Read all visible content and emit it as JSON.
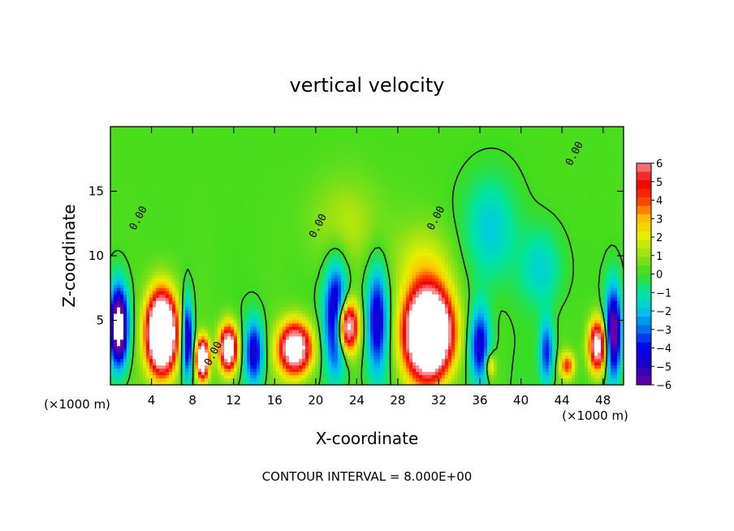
{
  "chart_data": {
    "type": "heatmap",
    "title": "vertical velocity",
    "xlabel": "X-coordinate",
    "ylabel": "Z-coordinate",
    "x_unit_left": "(×1000 m)",
    "x_unit_right": "(×1000 m)",
    "xlim": [
      0,
      50
    ],
    "ylim": [
      0,
      20
    ],
    "x_ticks": [
      {
        "value": 4,
        "label": "4"
      },
      {
        "value": 8,
        "label": "8"
      },
      {
        "value": 12,
        "label": "12"
      },
      {
        "value": 16,
        "label": "16"
      },
      {
        "value": 20,
        "label": "20"
      },
      {
        "value": 24,
        "label": "24"
      },
      {
        "value": 28,
        "label": "28"
      },
      {
        "value": 32,
        "label": "32"
      },
      {
        "value": 36,
        "label": "36"
      },
      {
        "value": 40,
        "label": "40"
      },
      {
        "value": 44,
        "label": "44"
      },
      {
        "value": 48,
        "label": "48"
      }
    ],
    "y_ticks": [
      {
        "value": 5,
        "label": "5"
      },
      {
        "value": 10,
        "label": "10"
      },
      {
        "value": 15,
        "label": "15"
      }
    ],
    "contour_labels": [
      {
        "text": "0.00",
        "x": 3.0,
        "y": 12.8
      },
      {
        "text": "0.00",
        "x": 10.3,
        "y": 2.3
      },
      {
        "text": "0.00",
        "x": 20.5,
        "y": 12.2
      },
      {
        "text": "0.00",
        "x": 32.0,
        "y": 12.8
      },
      {
        "text": "0.00",
        "x": 45.5,
        "y": 17.8
      }
    ],
    "footer": "CONTOUR INTERVAL = 8.000E+00",
    "colorbar": {
      "ticks": [
        "6",
        "5",
        "4",
        "3",
        "2",
        "1",
        "0",
        "−1",
        "−2",
        "−3",
        "−4",
        "−5",
        "−6"
      ],
      "min": -6,
      "max": 6
    },
    "features": [
      {
        "kind": "updraft",
        "x": 5.0,
        "z": 4.0,
        "amp": 14,
        "sx": 1.4,
        "sz": 3.0
      },
      {
        "kind": "updraft",
        "x": 9.0,
        "z": 2.0,
        "amp": 10,
        "sx": 0.6,
        "sz": 1.5
      },
      {
        "kind": "updraft",
        "x": 11.5,
        "z": 2.8,
        "amp": 9,
        "sx": 0.9,
        "sz": 1.8
      },
      {
        "kind": "updraft",
        "x": 18.0,
        "z": 2.8,
        "amp": 9,
        "sx": 1.6,
        "sz": 2.0
      },
      {
        "kind": "updraft",
        "x": 23.0,
        "z": 4.5,
        "amp": 9,
        "sx": 1.1,
        "sz": 2.0
      },
      {
        "kind": "updraft",
        "x": 31.0,
        "z": 4.0,
        "amp": 15,
        "sx": 2.2,
        "sz": 3.3
      },
      {
        "kind": "updraft",
        "x": 47.5,
        "z": 3.0,
        "amp": 8,
        "sx": 0.9,
        "sz": 2.0
      },
      {
        "kind": "updraft",
        "x": 44.5,
        "z": 1.5,
        "amp": 4,
        "sx": 0.7,
        "sz": 1.0
      },
      {
        "kind": "updraft",
        "x": 37.0,
        "z": 1.5,
        "amp": 3,
        "sx": 0.5,
        "sz": 1.0
      },
      {
        "kind": "downdraft",
        "x": 0.8,
        "z": 4.5,
        "amp": -9,
        "sx": 0.9,
        "sz": 3.0
      },
      {
        "kind": "downdraft",
        "x": 7.5,
        "z": 3.5,
        "amp": -6,
        "sx": 0.5,
        "sz": 3.0
      },
      {
        "kind": "downdraft",
        "x": 14.0,
        "z": 2.5,
        "amp": -5,
        "sx": 0.9,
        "sz": 2.5
      },
      {
        "kind": "downdraft",
        "x": 22.0,
        "z": 5.0,
        "amp": -7,
        "sx": 1.1,
        "sz": 4.0
      },
      {
        "kind": "downdraft",
        "x": 26.0,
        "z": 5.0,
        "amp": -5,
        "sx": 1.0,
        "sz": 4.0
      },
      {
        "kind": "downdraft",
        "x": 36.0,
        "z": 3.0,
        "amp": -5,
        "sx": 1.0,
        "sz": 3.0
      },
      {
        "kind": "downdraft",
        "x": 42.5,
        "z": 2.5,
        "amp": -4,
        "sx": 0.7,
        "sz": 2.5
      },
      {
        "kind": "downdraft",
        "x": 49.0,
        "z": 4.0,
        "amp": -7,
        "sx": 0.8,
        "sz": 3.5
      },
      {
        "kind": "downdraft",
        "x": 37.0,
        "z": 12.0,
        "amp": -2,
        "sx": 2.5,
        "sz": 4.0
      },
      {
        "kind": "downdraft",
        "x": 42.0,
        "z": 9.0,
        "amp": -1.8,
        "sx": 2.0,
        "sz": 3.0
      },
      {
        "kind": "weak-up",
        "x": 23.0,
        "z": 12.5,
        "amp": 1.2,
        "sx": 3.5,
        "sz": 3.5
      },
      {
        "kind": "weak-up",
        "x": 30.5,
        "z": 9.5,
        "amp": 1.5,
        "sx": 3.0,
        "sz": 3.0
      }
    ]
  }
}
